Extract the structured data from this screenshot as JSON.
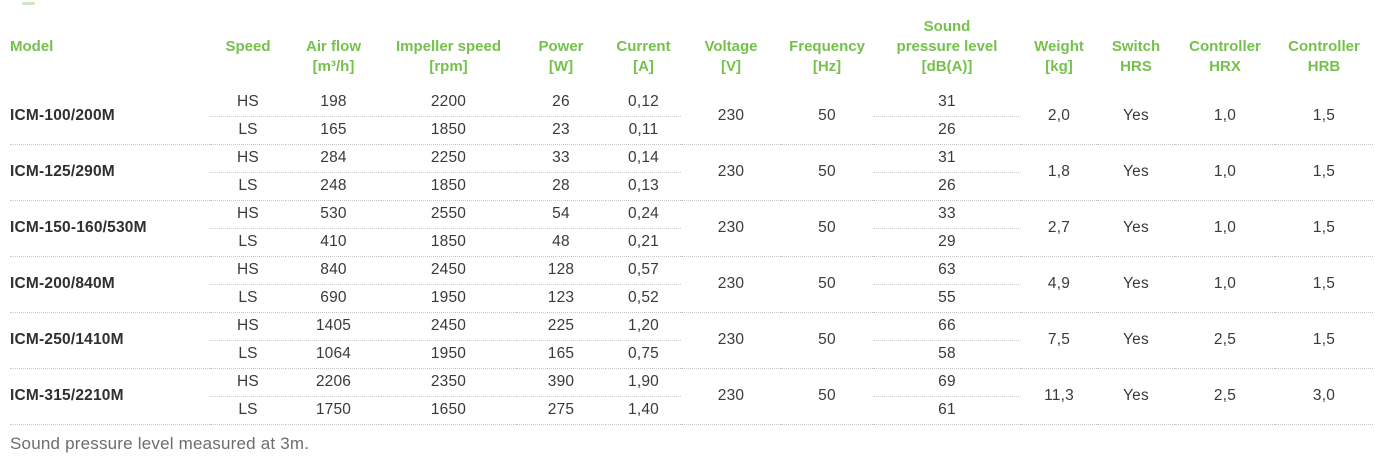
{
  "page": {
    "footer_note": "Sound pressure level measured at 3m."
  },
  "colors": {
    "accent_green": "#75c14c",
    "text_dark": "#3a3a39",
    "footer_gray": "#6d6d6d",
    "dotted_line": "#c6c6c6"
  },
  "table": {
    "columns": {
      "model": {
        "label": "Model"
      },
      "speed": {
        "label": "Speed"
      },
      "air_flow": {
        "label": "Air flow",
        "unit": "[m³/h]"
      },
      "impeller_speed": {
        "label": "Impeller speed",
        "unit": "[rpm]"
      },
      "power": {
        "label": "Power",
        "unit": "[W]"
      },
      "current": {
        "label": "Current",
        "unit": "[A]"
      },
      "voltage": {
        "label": "Voltage",
        "unit": "[V]"
      },
      "frequency": {
        "label": "Frequency",
        "unit": "[Hz]"
      },
      "sound_pressure_level": {
        "label_top": "Sound",
        "label": "pressure level",
        "unit": "[dB(A)]"
      },
      "weight": {
        "label": "Weight",
        "unit": "[kg]"
      },
      "switch_hrs": {
        "label": "Switch",
        "unit": "HRS"
      },
      "controller_hrx": {
        "label": "Controller",
        "unit": "HRX"
      },
      "controller_hrb": {
        "label": "Controller",
        "unit": "HRB"
      }
    },
    "groups": [
      {
        "model": "ICM-100/200M",
        "voltage": "230",
        "frequency": "50",
        "weight": "2,0",
        "switch_hrs": "Yes",
        "controller_hrx": "1,0",
        "controller_hrb": "1,5",
        "hs": {
          "speed_label": "HS",
          "air_flow": "198",
          "impeller_speed": "2200",
          "power": "26",
          "current": "0,12",
          "sound_pressure_level": "31"
        },
        "ls": {
          "speed_label": "LS",
          "air_flow": "165",
          "impeller_speed": "1850",
          "power": "23",
          "current": "0,11",
          "sound_pressure_level": "26"
        }
      },
      {
        "model": "ICM-125/290M",
        "voltage": "230",
        "frequency": "50",
        "weight": "1,8",
        "switch_hrs": "Yes",
        "controller_hrx": "1,0",
        "controller_hrb": "1,5",
        "hs": {
          "speed_label": "HS",
          "air_flow": "284",
          "impeller_speed": "2250",
          "power": "33",
          "current": "0,14",
          "sound_pressure_level": "31"
        },
        "ls": {
          "speed_label": "LS",
          "air_flow": "248",
          "impeller_speed": "1850",
          "power": "28",
          "current": "0,13",
          "sound_pressure_level": "26"
        }
      },
      {
        "model": "ICM-150-160/530M",
        "voltage": "230",
        "frequency": "50",
        "weight": "2,7",
        "switch_hrs": "Yes",
        "controller_hrx": "1,0",
        "controller_hrb": "1,5",
        "hs": {
          "speed_label": "HS",
          "air_flow": "530",
          "impeller_speed": "2550",
          "power": "54",
          "current": "0,24",
          "sound_pressure_level": "33"
        },
        "ls": {
          "speed_label": "LS",
          "air_flow": "410",
          "impeller_speed": "1850",
          "power": "48",
          "current": "0,21",
          "sound_pressure_level": "29"
        }
      },
      {
        "model": "ICM-200/840M",
        "voltage": "230",
        "frequency": "50",
        "weight": "4,9",
        "switch_hrs": "Yes",
        "controller_hrx": "1,0",
        "controller_hrb": "1,5",
        "hs": {
          "speed_label": "HS",
          "air_flow": "840",
          "impeller_speed": "2450",
          "power": "128",
          "current": "0,57",
          "sound_pressure_level": "63"
        },
        "ls": {
          "speed_label": "LS",
          "air_flow": "690",
          "impeller_speed": "1950",
          "power": "123",
          "current": "0,52",
          "sound_pressure_level": "55"
        }
      },
      {
        "model": "ICM-250/1410M",
        "voltage": "230",
        "frequency": "50",
        "weight": "7,5",
        "switch_hrs": "Yes",
        "controller_hrx": "2,5",
        "controller_hrb": "1,5",
        "hs": {
          "speed_label": "HS",
          "air_flow": "1405",
          "impeller_speed": "2450",
          "power": "225",
          "current": "1,20",
          "sound_pressure_level": "66"
        },
        "ls": {
          "speed_label": "LS",
          "air_flow": "1064",
          "impeller_speed": "1950",
          "power": "165",
          "current": "0,75",
          "sound_pressure_level": "58"
        }
      },
      {
        "model": "ICM-315/2210M",
        "voltage": "230",
        "frequency": "50",
        "weight": "11,3",
        "switch_hrs": "Yes",
        "controller_hrx": "2,5",
        "controller_hrb": "3,0",
        "hs": {
          "speed_label": "HS",
          "air_flow": "2206",
          "impeller_speed": "2350",
          "power": "390",
          "current": "1,90",
          "sound_pressure_level": "69"
        },
        "ls": {
          "speed_label": "LS",
          "air_flow": "1750",
          "impeller_speed": "1650",
          "power": "275",
          "current": "1,40",
          "sound_pressure_level": "61"
        }
      }
    ]
  }
}
